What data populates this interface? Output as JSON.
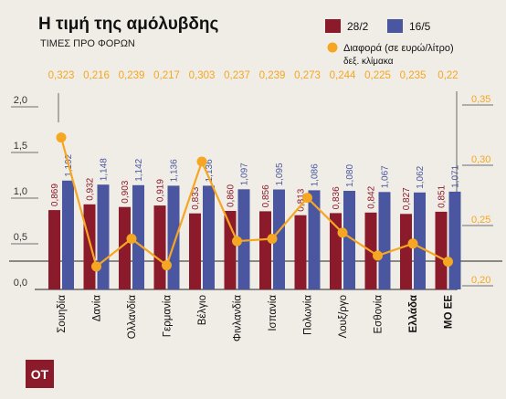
{
  "header": {
    "title": "Η τιμή της αμόλυβδης",
    "subtitle": "ΤΙΜΕΣ ΠΡΟ ΦΟΡΩΝ"
  },
  "legend": {
    "series1_label": "28/2",
    "series2_label": "16/5",
    "line_label": "Διαφορά (σε ευρώ/λίτρο)",
    "line_sublabel": "δεξ. κλίμακα"
  },
  "logo": {
    "text": "ΟΤ"
  },
  "colors": {
    "bar_28_2": "#8b1a2b",
    "bar_16_5": "#4a57a0",
    "diff_line": "#f5a623",
    "background": "#f0ede6"
  },
  "chart_data": {
    "type": "bar",
    "categories": [
      "Σουηδία",
      "Δανία",
      "Ολλανδία",
      "Γερμανία",
      "Βέλγιο",
      "Φινλανδία",
      "Ισπανία",
      "Πολωνία",
      "Λουξ/ργο",
      "Εσθονία",
      "Ελλάδα",
      "ΜΟ ΕΕ"
    ],
    "bold_categories": [
      "Ελλάδα",
      "ΜΟ ΕΕ"
    ],
    "series": [
      {
        "name": "28/2",
        "values": [
          0.869,
          0.932,
          0.903,
          0.919,
          0.833,
          0.86,
          0.856,
          0.813,
          0.836,
          0.842,
          0.827,
          0.851
        ]
      },
      {
        "name": "16/5",
        "values": [
          1.192,
          1.148,
          1.142,
          1.136,
          1.136,
          1.097,
          1.095,
          1.086,
          1.08,
          1.067,
          1.062,
          1.071
        ]
      }
    ],
    "value_labels": {
      "28/2": [
        "0,869",
        "0,932",
        "0,903",
        "0,919",
        "0,833",
        "0,860",
        "0,856",
        "0,813",
        "0,836",
        "0,842",
        "0,827",
        "0,851"
      ],
      "16/5": [
        "1,192",
        "1,148",
        "1,142",
        "1,136",
        "1,136",
        "1,097",
        "1,095",
        "1,086",
        "1,080",
        "1,067",
        "1,062",
        "1,071"
      ]
    },
    "line_series": {
      "name": "Διαφορά (σε ευρώ/λίτρο)",
      "axis": "right",
      "values": [
        0.323,
        0.216,
        0.239,
        0.217,
        0.303,
        0.237,
        0.239,
        0.273,
        0.244,
        0.225,
        0.235,
        0.22
      ],
      "labels": [
        "0,323",
        "0,216",
        "0,239",
        "0,217",
        "0,303",
        "0,237",
        "0,239",
        "0,273",
        "0,244",
        "0,225",
        "0,235",
        "0,22"
      ]
    },
    "left_axis": {
      "ylim": [
        0,
        2.0
      ],
      "ticks": [
        0,
        0.5,
        1.0,
        1.5,
        2.0
      ],
      "tick_labels": [
        "0,0",
        "0,5",
        "1,0",
        "1,5",
        "2,0"
      ]
    },
    "right_axis": {
      "ylim": [
        0.2,
        0.35
      ],
      "ticks": [
        0.2,
        0.25,
        0.3,
        0.35
      ],
      "tick_labels": [
        "0,20",
        "0,25",
        "0,30",
        "0,35"
      ]
    },
    "grid": true
  }
}
